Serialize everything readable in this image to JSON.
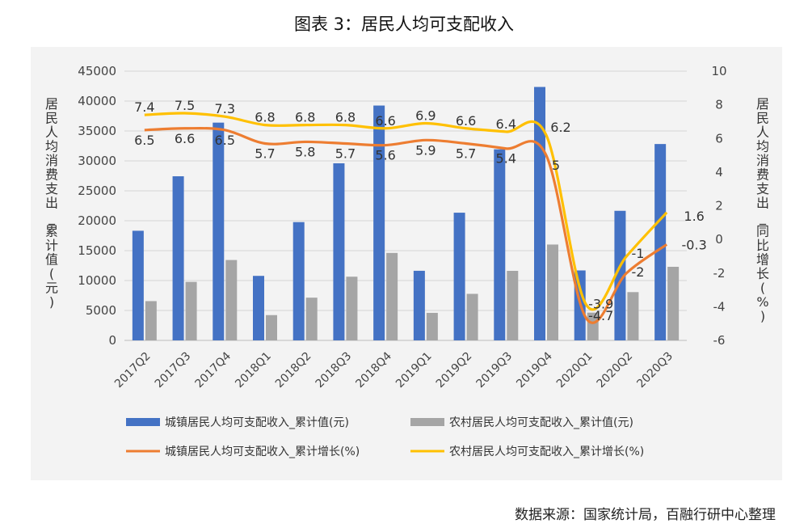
{
  "title": "图表 3：居民人均可支配收入",
  "source": "数据来源：国家统计局，百融行研中心整理",
  "colors": {
    "urban_bar": "#4472c4",
    "rural_bar": "#a5a5a5",
    "urban_line": "#ed7d31",
    "rural_line": "#ffc000"
  },
  "chart_data": {
    "type": "bar",
    "categories": [
      "2017Q2",
      "2017Q3",
      "2017Q4",
      "2018Q1",
      "2018Q2",
      "2018Q3",
      "2018Q4",
      "2019Q1",
      "2019Q2",
      "2019Q3",
      "2019Q4",
      "2020Q1",
      "2020Q2",
      "2020Q3"
    ],
    "ylabel": "居民人均消费支出_累计值(元)",
    "y2label": "居民人均消费支出_同比增长(%)",
    "ylim": [
      0,
      45000
    ],
    "yticks": [
      0,
      5000,
      10000,
      15000,
      20000,
      25000,
      30000,
      35000,
      40000,
      45000
    ],
    "y2lim": [
      -6,
      10
    ],
    "y2ticks": [
      -6,
      -4,
      -2,
      0,
      2,
      4,
      6,
      8,
      10
    ],
    "grid": true,
    "legend_placement": "bottom",
    "series": [
      {
        "name": "城镇居民人均可支配收入_累计值(元)",
        "type": "bar",
        "axis": "left",
        "values": [
          18322,
          27430,
          36396,
          10781,
          19770,
          29599,
          39251,
          11633,
          21342,
          31939,
          42359,
          11691,
          21655,
          32821
        ]
      },
      {
        "name": "农村居民人均可支配收入_累计值(元)",
        "type": "bar",
        "axis": "left",
        "values": [
          6562,
          9778,
          13432,
          4226,
          7142,
          10645,
          14617,
          4600,
          7778,
          11622,
          16021,
          4641,
          8069,
          12297
        ]
      },
      {
        "name": "城镇居民人均可支配收入_累计增长(%)",
        "type": "line",
        "axis": "right",
        "values": [
          6.5,
          6.6,
          6.5,
          5.7,
          5.8,
          5.7,
          5.6,
          5.9,
          5.7,
          5.4,
          5,
          -4.7,
          -2,
          -0.3
        ],
        "labels": [
          "6.5",
          "6.6",
          "6.5",
          "5.7",
          "5.8",
          "5.7",
          "5.6",
          "5.9",
          "5.7",
          "5.4",
          "5",
          "-4.7",
          "-2",
          "-0.3"
        ]
      },
      {
        "name": "农村居民人均可支配收入_累计增长(%)",
        "type": "line",
        "axis": "right",
        "values": [
          7.4,
          7.5,
          7.3,
          6.8,
          6.8,
          6.8,
          6.6,
          6.9,
          6.6,
          6.4,
          6.2,
          -3.9,
          -1,
          1.6
        ],
        "labels": [
          "7.4",
          "7.5",
          "7.3",
          "6.8",
          "6.8",
          "6.8",
          "6.6",
          "6.9",
          "6.6",
          "6.4",
          "6.2",
          "-3.9",
          "-1",
          "1.6"
        ]
      }
    ]
  }
}
